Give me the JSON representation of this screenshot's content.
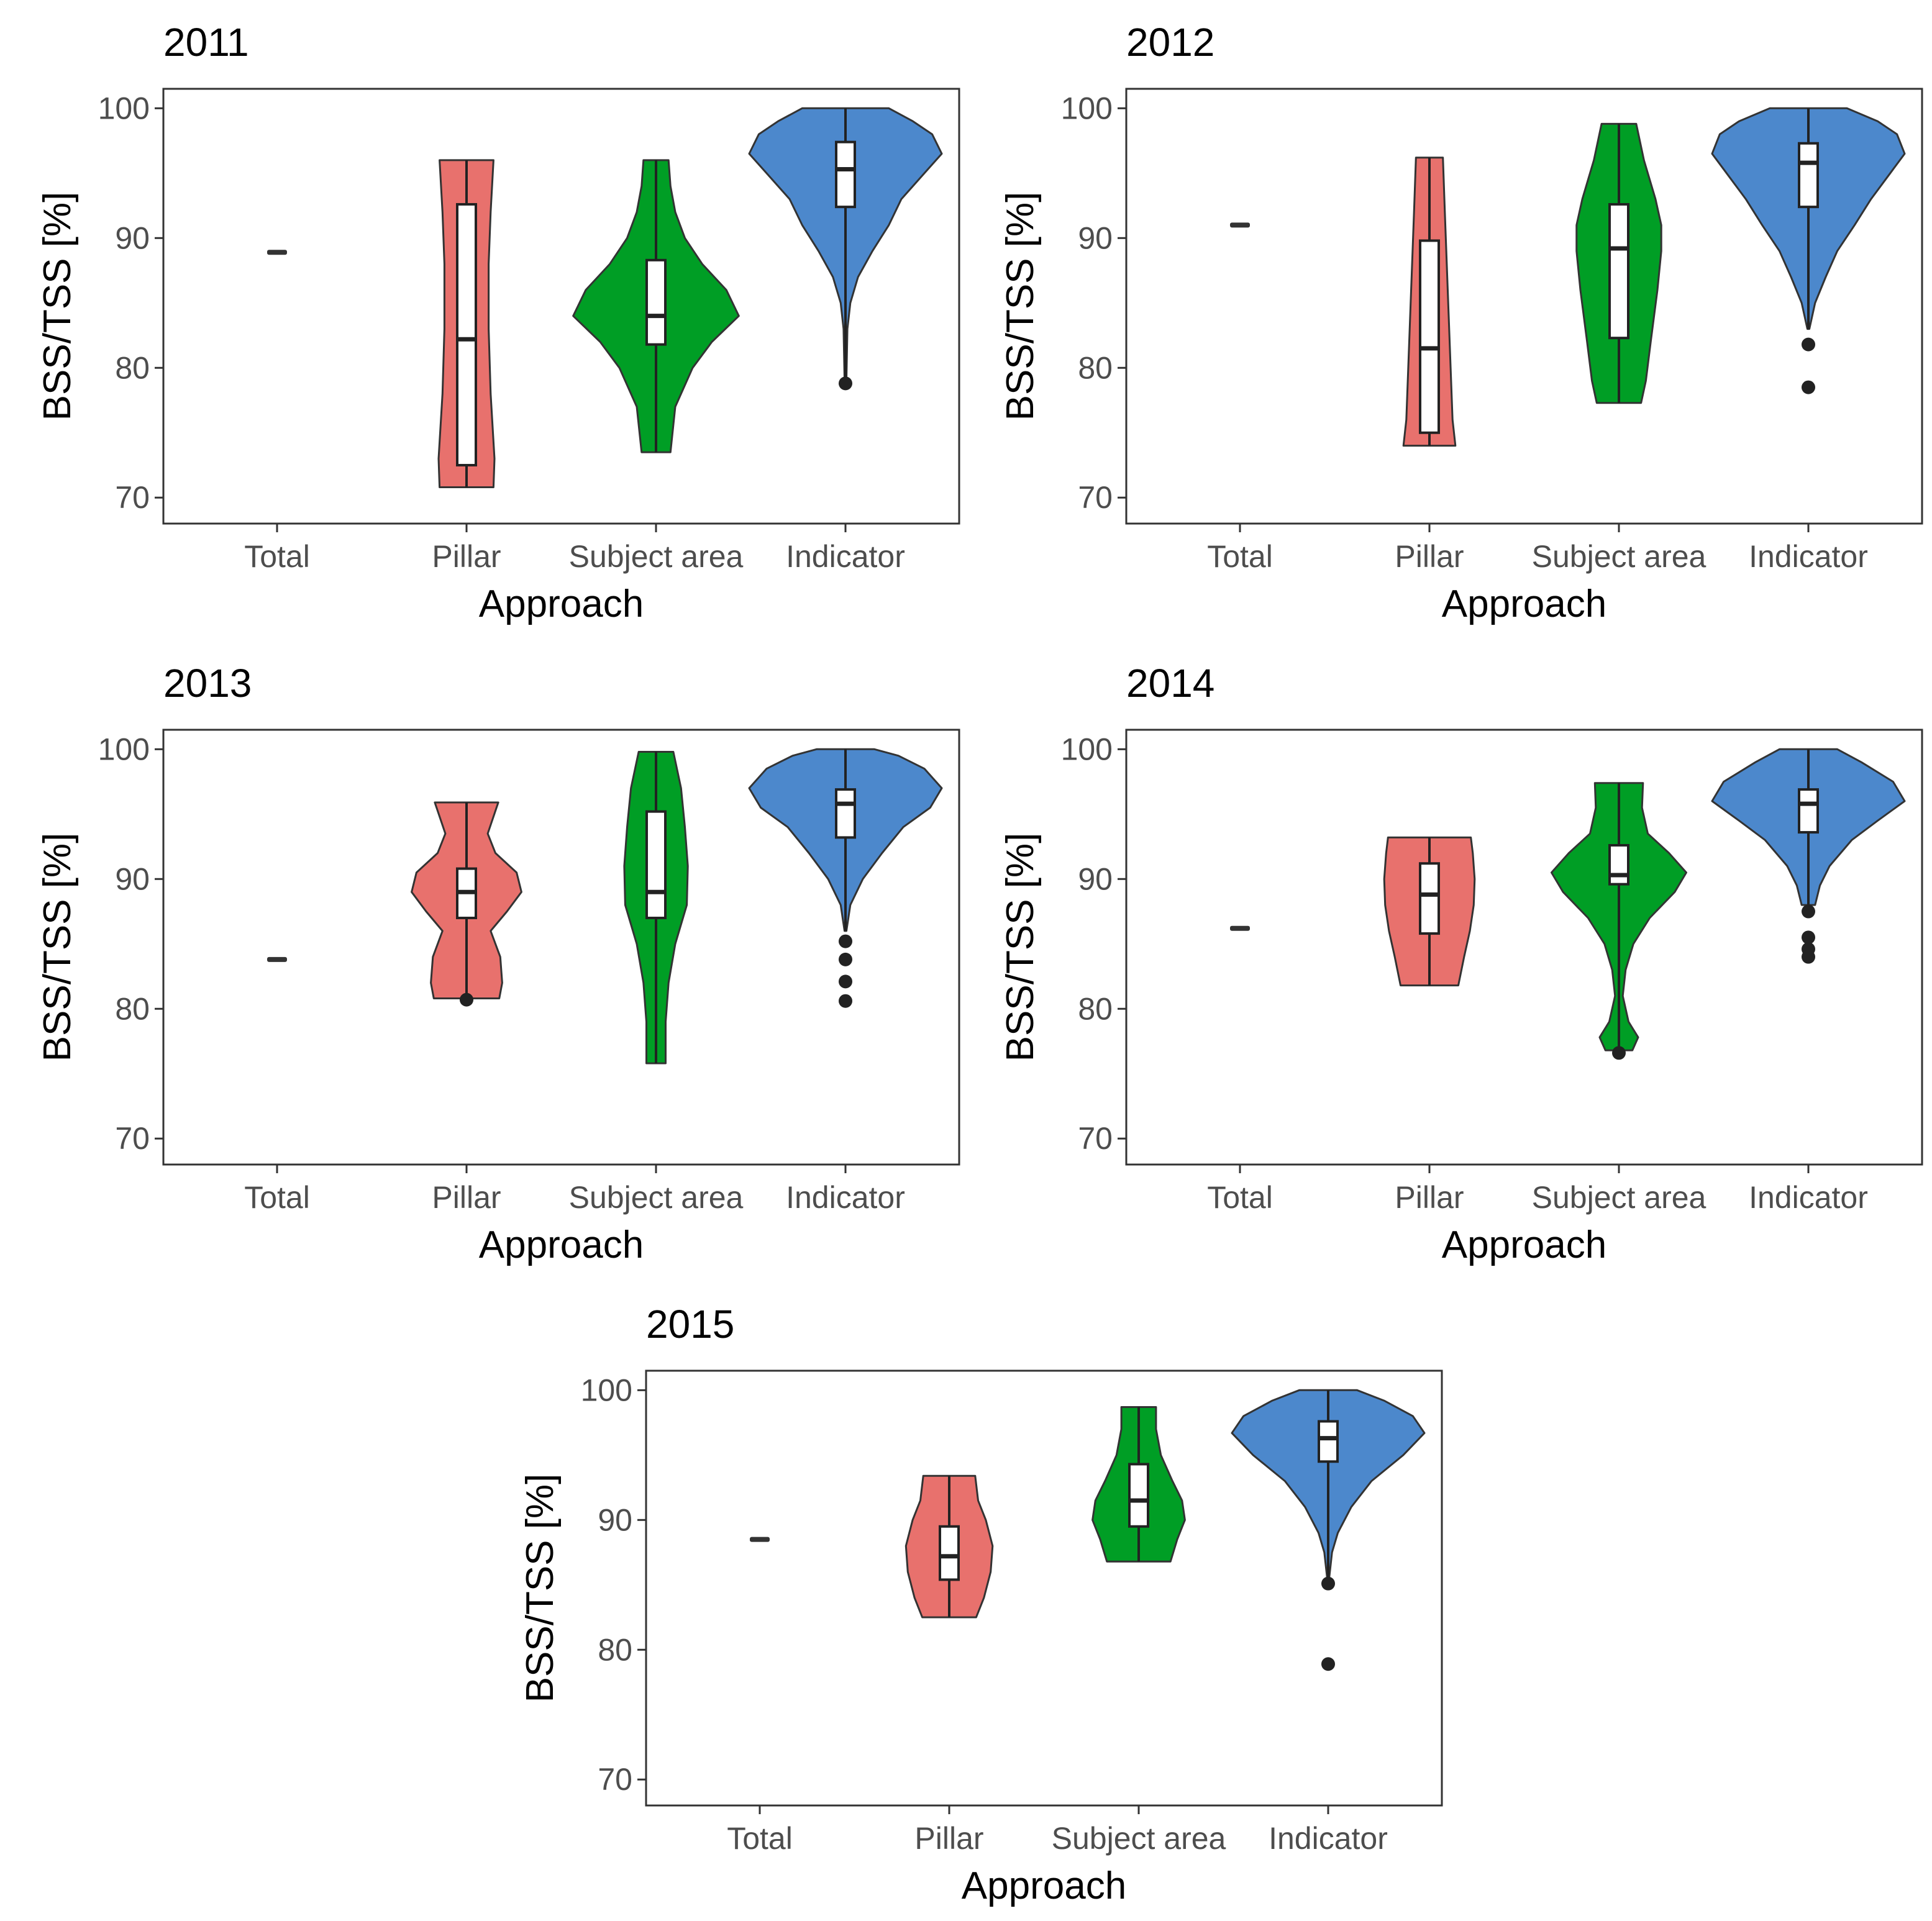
{
  "chart_data": [
    {
      "type": "violin",
      "title": "2011",
      "xlabel": "Approach",
      "ylabel": "BSS/TSS [%]",
      "ylim": [
        68,
        101.5
      ],
      "yticks": [
        70,
        80,
        90,
        100
      ],
      "categories": [
        "Total",
        "Pillar",
        "Subject area",
        "Indicator"
      ],
      "series": [
        {
          "name": "Total",
          "color": "#333333",
          "min": 88.9,
          "max": 88.9,
          "box": {
            "q1": 88.9,
            "median": 88.9,
            "q3": 88.9
          },
          "profile": [
            [
              88.9,
              0.5
            ]
          ],
          "outliers": []
        },
        {
          "name": "Pillar",
          "color": "#E8716D",
          "min": 70.8,
          "max": 96,
          "box": {
            "q1": 72.5,
            "median": 82.2,
            "q3": 92.6
          },
          "profile": [
            [
              70.8,
              0.28
            ],
            [
              73,
              0.29
            ],
            [
              78,
              0.25
            ],
            [
              83,
              0.23
            ],
            [
              88,
              0.23
            ],
            [
              92,
              0.25
            ],
            [
              96,
              0.28
            ]
          ],
          "outliers": []
        },
        {
          "name": "Subject area",
          "color": "#009E25",
          "min": 73.5,
          "max": 96,
          "box": {
            "q1": 81.8,
            "median": 84,
            "q3": 88.3
          },
          "profile": [
            [
              73.5,
              0.15
            ],
            [
              77,
              0.2
            ],
            [
              80,
              0.38
            ],
            [
              82,
              0.58
            ],
            [
              84,
              0.86
            ],
            [
              86,
              0.73
            ],
            [
              88,
              0.48
            ],
            [
              90,
              0.3
            ],
            [
              92,
              0.2
            ],
            [
              94,
              0.15
            ],
            [
              96,
              0.13
            ]
          ],
          "outliers": []
        },
        {
          "name": "Indicator",
          "color": "#4C88CC",
          "min": 79,
          "max": 100,
          "box": {
            "q1": 92.4,
            "median": 95.3,
            "q3": 97.4
          },
          "profile": [
            [
              79,
              0.01
            ],
            [
              83,
              0.02
            ],
            [
              85,
              0.05
            ],
            [
              87,
              0.13
            ],
            [
              89,
              0.28
            ],
            [
              91,
              0.45
            ],
            [
              93,
              0.58
            ],
            [
              95,
              0.82
            ],
            [
              96.5,
              1
            ],
            [
              98,
              0.9
            ],
            [
              99,
              0.7
            ],
            [
              100,
              0.45
            ]
          ],
          "outliers": [
            78.8
          ]
        }
      ]
    },
    {
      "type": "violin",
      "title": "2012",
      "xlabel": "Approach",
      "ylabel": "BSS/TSS [%]",
      "ylim": [
        68,
        101.5
      ],
      "yticks": [
        70,
        80,
        90,
        100
      ],
      "categories": [
        "Total",
        "Pillar",
        "Subject area",
        "Indicator"
      ],
      "series": [
        {
          "name": "Total",
          "color": "#333333",
          "min": 91,
          "max": 91,
          "box": {
            "q1": 91,
            "median": 91,
            "q3": 91
          },
          "profile": [
            [
              91,
              0.5
            ]
          ],
          "outliers": []
        },
        {
          "name": "Pillar",
          "color": "#E8716D",
          "min": 74,
          "max": 96.2,
          "box": {
            "q1": 75,
            "median": 81.5,
            "q3": 89.8
          },
          "profile": [
            [
              74,
              0.27
            ],
            [
              76,
              0.24
            ],
            [
              80,
              0.22
            ],
            [
              84,
              0.2
            ],
            [
              88,
              0.18
            ],
            [
              92,
              0.16
            ],
            [
              96.2,
              0.14
            ]
          ],
          "outliers": []
        },
        {
          "name": "Subject area",
          "color": "#009E25",
          "min": 77.3,
          "max": 98.8,
          "box": {
            "q1": 82.3,
            "median": 89.2,
            "q3": 92.6
          },
          "profile": [
            [
              77.3,
              0.23
            ],
            [
              79,
              0.28
            ],
            [
              82,
              0.33
            ],
            [
              86,
              0.4
            ],
            [
              89,
              0.44
            ],
            [
              91,
              0.44
            ],
            [
              93,
              0.38
            ],
            [
              96,
              0.26
            ],
            [
              98.8,
              0.18
            ]
          ],
          "outliers": []
        },
        {
          "name": "Indicator",
          "color": "#4C88CC",
          "min": 83,
          "max": 100,
          "box": {
            "q1": 92.4,
            "median": 95.8,
            "q3": 97.3
          },
          "profile": [
            [
              83,
              0.01
            ],
            [
              85,
              0.07
            ],
            [
              87,
              0.18
            ],
            [
              89,
              0.3
            ],
            [
              91,
              0.48
            ],
            [
              93,
              0.65
            ],
            [
              95,
              0.85
            ],
            [
              96.5,
              1
            ],
            [
              98,
              0.92
            ],
            [
              99,
              0.72
            ],
            [
              100,
              0.4
            ]
          ],
          "outliers": [
            81.8,
            78.5
          ]
        }
      ]
    },
    {
      "type": "violin",
      "title": "2013",
      "xlabel": "Approach",
      "ylabel": "BSS/TSS [%]",
      "ylim": [
        68,
        101.5
      ],
      "yticks": [
        70,
        80,
        90,
        100
      ],
      "categories": [
        "Total",
        "Pillar",
        "Subject area",
        "Indicator"
      ],
      "series": [
        {
          "name": "Total",
          "color": "#333333",
          "min": 83.8,
          "max": 83.8,
          "box": {
            "q1": 83.8,
            "median": 83.8,
            "q3": 83.8
          },
          "profile": [
            [
              83.8,
              0.5
            ]
          ],
          "outliers": []
        },
        {
          "name": "Pillar",
          "color": "#E8716D",
          "min": 80.8,
          "max": 95.9,
          "box": {
            "q1": 87,
            "median": 89,
            "q3": 90.8
          },
          "profile": [
            [
              80.8,
              0.34
            ],
            [
              82,
              0.37
            ],
            [
              84,
              0.35
            ],
            [
              86,
              0.25
            ],
            [
              87.5,
              0.42
            ],
            [
              89,
              0.57
            ],
            [
              90.5,
              0.52
            ],
            [
              92,
              0.3
            ],
            [
              93.5,
              0.22
            ],
            [
              95.9,
              0.33
            ]
          ],
          "outliers": [
            80.7
          ]
        },
        {
          "name": "Subject area",
          "color": "#009E25",
          "min": 75.8,
          "max": 99.8,
          "box": {
            "q1": 87,
            "median": 89,
            "q3": 95.2
          },
          "profile": [
            [
              75.8,
              0.1
            ],
            [
              79,
              0.1
            ],
            [
              82,
              0.13
            ],
            [
              85,
              0.2
            ],
            [
              88,
              0.32
            ],
            [
              91,
              0.33
            ],
            [
              94,
              0.3
            ],
            [
              97,
              0.26
            ],
            [
              99.8,
              0.18
            ]
          ],
          "outliers": []
        },
        {
          "name": "Indicator",
          "color": "#4C88CC",
          "min": 86,
          "max": 100,
          "box": {
            "q1": 93.2,
            "median": 95.8,
            "q3": 96.9
          },
          "profile": [
            [
              86,
              0.01
            ],
            [
              88,
              0.05
            ],
            [
              90,
              0.18
            ],
            [
              92,
              0.38
            ],
            [
              94,
              0.6
            ],
            [
              95.5,
              0.88
            ],
            [
              97,
              1
            ],
            [
              98.5,
              0.82
            ],
            [
              99.5,
              0.55
            ],
            [
              100,
              0.3
            ]
          ],
          "outliers": [
            85.2,
            83.8,
            82.1,
            80.6
          ]
        }
      ]
    },
    {
      "type": "violin",
      "title": "2014",
      "xlabel": "Approach",
      "ylabel": "BSS/TSS [%]",
      "ylim": [
        68,
        101.5
      ],
      "yticks": [
        70,
        80,
        90,
        100
      ],
      "categories": [
        "Total",
        "Pillar",
        "Subject area",
        "Indicator"
      ],
      "series": [
        {
          "name": "Total",
          "color": "#333333",
          "min": 86.2,
          "max": 86.2,
          "box": {
            "q1": 86.2,
            "median": 86.2,
            "q3": 86.2
          },
          "profile": [
            [
              86.2,
              0.5
            ]
          ],
          "outliers": []
        },
        {
          "name": "Pillar",
          "color": "#E8716D",
          "min": 81.8,
          "max": 93.2,
          "box": {
            "q1": 85.8,
            "median": 88.8,
            "q3": 91.2
          },
          "profile": [
            [
              81.8,
              0.3
            ],
            [
              84,
              0.36
            ],
            [
              86,
              0.42
            ],
            [
              88,
              0.46
            ],
            [
              90,
              0.47
            ],
            [
              92,
              0.45
            ],
            [
              93.2,
              0.43
            ]
          ],
          "outliers": []
        },
        {
          "name": "Subject area",
          "color": "#009E25",
          "min": 76.8,
          "max": 97.4,
          "box": {
            "q1": 89.6,
            "median": 90.3,
            "q3": 92.6
          },
          "profile": [
            [
              76.8,
              0.14
            ],
            [
              77.8,
              0.2
            ],
            [
              79,
              0.1
            ],
            [
              81,
              0.04
            ],
            [
              83,
              0.07
            ],
            [
              85,
              0.15
            ],
            [
              87,
              0.32
            ],
            [
              89,
              0.58
            ],
            [
              90.5,
              0.7
            ],
            [
              92,
              0.52
            ],
            [
              93.5,
              0.3
            ],
            [
              95.5,
              0.24
            ],
            [
              97.4,
              0.25
            ]
          ],
          "outliers": [
            76.6
          ]
        },
        {
          "name": "Indicator",
          "color": "#4C88CC",
          "min": 88,
          "max": 100,
          "box": {
            "q1": 93.6,
            "median": 95.8,
            "q3": 96.9
          },
          "profile": [
            [
              88,
              0.07
            ],
            [
              89.5,
              0.12
            ],
            [
              91,
              0.22
            ],
            [
              93,
              0.45
            ],
            [
              94.5,
              0.72
            ],
            [
              96,
              1
            ],
            [
              97.5,
              0.88
            ],
            [
              99,
              0.55
            ],
            [
              100,
              0.3
            ]
          ],
          "outliers": [
            87.5,
            85.5,
            84.6,
            84
          ]
        }
      ]
    },
    {
      "type": "violin",
      "title": "2015",
      "xlabel": "Approach",
      "ylabel": "BSS/TSS [%]",
      "ylim": [
        68,
        101.5
      ],
      "yticks": [
        70,
        80,
        90,
        100
      ],
      "categories": [
        "Total",
        "Pillar",
        "Subject area",
        "Indicator"
      ],
      "series": [
        {
          "name": "Total",
          "color": "#333333",
          "min": 88.5,
          "max": 88.5,
          "box": {
            "q1": 88.5,
            "median": 88.5,
            "q3": 88.5
          },
          "profile": [
            [
              88.5,
              0.5
            ]
          ],
          "outliers": []
        },
        {
          "name": "Pillar",
          "color": "#E8716D",
          "min": 82.5,
          "max": 93.4,
          "box": {
            "q1": 85.4,
            "median": 87.2,
            "q3": 89.5
          },
          "profile": [
            [
              82.5,
              0.28
            ],
            [
              84,
              0.36
            ],
            [
              86,
              0.43
            ],
            [
              88,
              0.45
            ],
            [
              90,
              0.38
            ],
            [
              91.5,
              0.3
            ],
            [
              93.4,
              0.27
            ]
          ],
          "outliers": []
        },
        {
          "name": "Subject area",
          "color": "#009E25",
          "min": 86.8,
          "max": 98.7,
          "box": {
            "q1": 89.5,
            "median": 91.5,
            "q3": 94.3
          },
          "profile": [
            [
              86.8,
              0.33
            ],
            [
              88.5,
              0.4
            ],
            [
              90,
              0.48
            ],
            [
              91.5,
              0.45
            ],
            [
              93,
              0.35
            ],
            [
              95,
              0.23
            ],
            [
              97,
              0.18
            ],
            [
              98.7,
              0.18
            ]
          ],
          "outliers": []
        },
        {
          "name": "Indicator",
          "color": "#4C88CC",
          "min": 85.5,
          "max": 100,
          "box": {
            "q1": 94.5,
            "median": 96.3,
            "q3": 97.6
          },
          "profile": [
            [
              85.5,
              0.01
            ],
            [
              87.5,
              0.04
            ],
            [
              89,
              0.1
            ],
            [
              91,
              0.24
            ],
            [
              93,
              0.45
            ],
            [
              95,
              0.78
            ],
            [
              96.7,
              1
            ],
            [
              98,
              0.88
            ],
            [
              99.2,
              0.58
            ],
            [
              100,
              0.3
            ]
          ],
          "outliers": [
            85.1,
            78.9
          ]
        }
      ]
    }
  ]
}
